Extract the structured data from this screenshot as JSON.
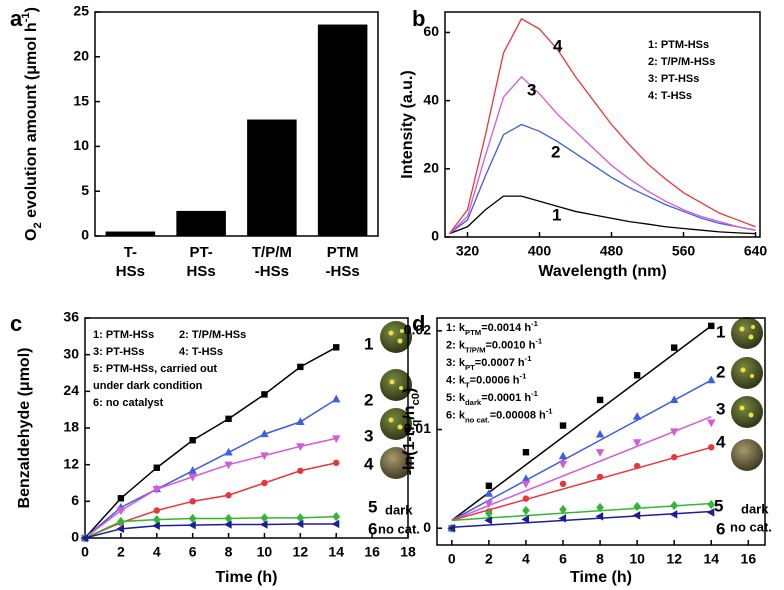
{
  "chart_data": [
    {
      "type": "bar",
      "panel_label": "a",
      "y_label": [
        "O",
        {
          "text": "2",
          "shift": "sub"
        },
        " evolution amount (μmol h",
        {
          "text": "-1",
          "shift": "super"
        },
        ")"
      ],
      "categories": [
        [
          "T-",
          "HSs"
        ],
        [
          "PT-",
          "HSs"
        ],
        [
          "T/P/M",
          "-HSs"
        ],
        [
          "PTM",
          "-HSs"
        ]
      ],
      "values": [
        0.5,
        2.8,
        13,
        23.6
      ],
      "color": "#000000",
      "ylim": [
        0,
        25
      ],
      "yticks": [
        0,
        5,
        10,
        15,
        20,
        25
      ]
    },
    {
      "type": "line",
      "panel_label": "b",
      "x_label": "Wavelength (nm)",
      "y_label": "Intensity (a.u.)",
      "x": [
        300,
        320,
        340,
        360,
        380,
        400,
        420,
        440,
        460,
        480,
        500,
        520,
        540,
        560,
        580,
        600,
        620,
        640
      ],
      "xlim": [
        295,
        645
      ],
      "xticks": [
        320,
        400,
        480,
        560,
        640
      ],
      "ylim": [
        0,
        66
      ],
      "yticks": [
        0,
        20,
        40,
        60
      ],
      "series": [
        {
          "name": "1: PTM-HSs",
          "color": "#000000",
          "values": [
            1,
            3,
            8,
            12,
            12,
            10.5,
            9,
            7.5,
            6.5,
            5.5,
            4.5,
            3.8,
            3,
            2.5,
            2,
            1.5,
            1.2,
            1
          ]
        },
        {
          "name": "2: T/P/M-HSs",
          "color": "#3b5fe0",
          "values": [
            1,
            5,
            18,
            30,
            33,
            31,
            28,
            24.5,
            21,
            17.5,
            14.5,
            12,
            9.5,
            7.5,
            5.5,
            4,
            3,
            2
          ]
        },
        {
          "name": "3: PT-HSs",
          "color": "#d45ad8",
          "values": [
            1,
            6,
            24,
            41,
            47,
            42,
            36,
            31,
            26,
            21,
            17,
            13.5,
            10.5,
            8,
            6,
            4.5,
            3,
            2
          ]
        },
        {
          "name": "4: T-HSs",
          "color": "#e8363a",
          "values": [
            1,
            8,
            30,
            54,
            64,
            61,
            55,
            47,
            40,
            33,
            27,
            21.5,
            17,
            13,
            10,
            7,
            5,
            3
          ]
        }
      ],
      "annotations": [
        "1",
        "2",
        "3",
        "4"
      ]
    },
    {
      "type": "line",
      "markers": true,
      "panel_label": "c",
      "x_label": "Time (h)",
      "y_label": "Benzaldehyde (μmol)",
      "x": [
        0,
        2,
        4,
        6,
        8,
        10,
        12,
        14
      ],
      "xlim": [
        0,
        18
      ],
      "xticks": [
        0,
        2,
        4,
        6,
        8,
        10,
        12,
        14,
        16,
        18
      ],
      "ylim": [
        0,
        36
      ],
      "yticks": [
        0,
        6,
        12,
        18,
        24,
        30,
        36
      ],
      "series": [
        {
          "name": "1: PTM-HSs",
          "color": "#000000",
          "marker": "square",
          "values": [
            0,
            6.5,
            11.5,
            16,
            19.5,
            23.5,
            28,
            31.2
          ]
        },
        {
          "name": "2: T/P/M-HSs",
          "color": "#3b5fe0",
          "marker": "triangle",
          "values": [
            0,
            5,
            8,
            11,
            14,
            17,
            19,
            22.7
          ]
        },
        {
          "name": "3: PT-HSs",
          "color": "#d45ad8",
          "marker": "triangle-down",
          "values": [
            0,
            4.5,
            8,
            10,
            12,
            13.5,
            15,
            16.3
          ]
        },
        {
          "name": "4: T-HSs",
          "color": "#e8363a",
          "marker": "circle",
          "values": [
            0,
            2.5,
            4.5,
            6,
            7,
            9,
            11,
            12.3
          ]
        },
        {
          "name": "5: PTM-HSs, carried out under dark condition",
          "color": "#33b633",
          "marker": "diamond",
          "values": [
            0,
            2.7,
            3,
            3.2,
            3.2,
            3.3,
            3.3,
            3.5
          ]
        },
        {
          "name": "6: no catalyst",
          "color": "#1c1c9c",
          "marker": "triangle-left",
          "values": [
            0,
            1.5,
            2,
            2.1,
            2.2,
            2.2,
            2.3,
            2.3
          ]
        }
      ],
      "annotations": [
        "1",
        "2",
        "3",
        "4",
        "5",
        "dark",
        "6",
        "no cat."
      ]
    },
    {
      "type": "scatter",
      "panel_label": "d",
      "x_label": "Time (h)",
      "y_label": [
        "-ln(1-n",
        {
          "text": "q",
          "shift": "sub"
        },
        "/n",
        {
          "text": "c0",
          "shift": "sub"
        },
        ")"
      ],
      "x": [
        0,
        2,
        4,
        6,
        8,
        10,
        12,
        14
      ],
      "xlim": [
        -0.8,
        16.9
      ],
      "xticks": [
        0,
        2,
        4,
        6,
        8,
        10,
        12,
        14,
        16
      ],
      "ylim": [
        -0.0017,
        0.0213
      ],
      "yticks": [
        0,
        0.01,
        0.02
      ],
      "series": [
        {
          "name": [
            "1: k",
            {
              "text": "PTM",
              "shift": "sub"
            },
            "=0.0014 h",
            {
              "text": "-1",
              "shift": "super"
            }
          ],
          "color": "#000000",
          "marker": "square",
          "values": [
            0,
            0.0043,
            0.0077,
            0.0104,
            0.013,
            0.0155,
            0.0183,
            0.0205
          ],
          "fit": [
            0.0008,
            0.0205
          ]
        },
        {
          "name": [
            "2: k",
            {
              "text": "T/P/M",
              "shift": "sub"
            },
            "=0.0010 h",
            {
              "text": "-1",
              "shift": "super"
            }
          ],
          "color": "#3b5fe0",
          "marker": "triangle",
          "values": [
            0,
            0.0035,
            0.005,
            0.0073,
            0.0095,
            0.0113,
            0.013,
            0.015
          ],
          "fit": [
            0.0008,
            0.015
          ]
        },
        {
          "name": [
            "3: k",
            {
              "text": "PT",
              "shift": "sub"
            },
            "=0.0007 h",
            {
              "text": "-1",
              "shift": "super"
            }
          ],
          "color": "#d45ad8",
          "marker": "triangle-down",
          "values": [
            0,
            0.0025,
            0.0045,
            0.0065,
            0.0077,
            0.0087,
            0.0098,
            0.0107
          ],
          "fit": [
            0.0008,
            0.0113
          ]
        },
        {
          "name": [
            "4: k",
            {
              "text": "T",
              "shift": "sub"
            },
            "=0.0006 h",
            {
              "text": "-1",
              "shift": "super"
            }
          ],
          "color": "#e8363a",
          "marker": "circle",
          "values": [
            0,
            0.0017,
            0.003,
            0.0045,
            0.0052,
            0.0063,
            0.0072,
            0.0082
          ],
          "fit": [
            0.0008,
            0.0082
          ]
        },
        {
          "name": [
            "5: k",
            {
              "text": "dark",
              "shift": "sub"
            },
            "=0.0001 h",
            {
              "text": "-1",
              "shift": "super"
            }
          ],
          "color": "#33b633",
          "marker": "diamond",
          "values": [
            0,
            0.0015,
            0.0018,
            0.0019,
            0.0021,
            0.0022,
            0.0023,
            0.0024
          ],
          "fit": [
            0.0008,
            0.0025
          ]
        },
        {
          "name": [
            "6: k",
            {
              "text": "no cat.",
              "shift": "sub"
            },
            "=0.00008 h",
            {
              "text": "-1",
              "shift": "super"
            }
          ],
          "color": "#1c1c9c",
          "marker": "triangle-left",
          "values": [
            0,
            0.0008,
            0.0009,
            0.001,
            0.0012,
            0.0013,
            0.0014,
            0.0016
          ],
          "fit": [
            0.0001,
            0.0017
          ]
        }
      ],
      "annotations": [
        "1",
        "2",
        "3",
        "4",
        "5",
        "dark",
        "6",
        "no cat."
      ]
    }
  ]
}
